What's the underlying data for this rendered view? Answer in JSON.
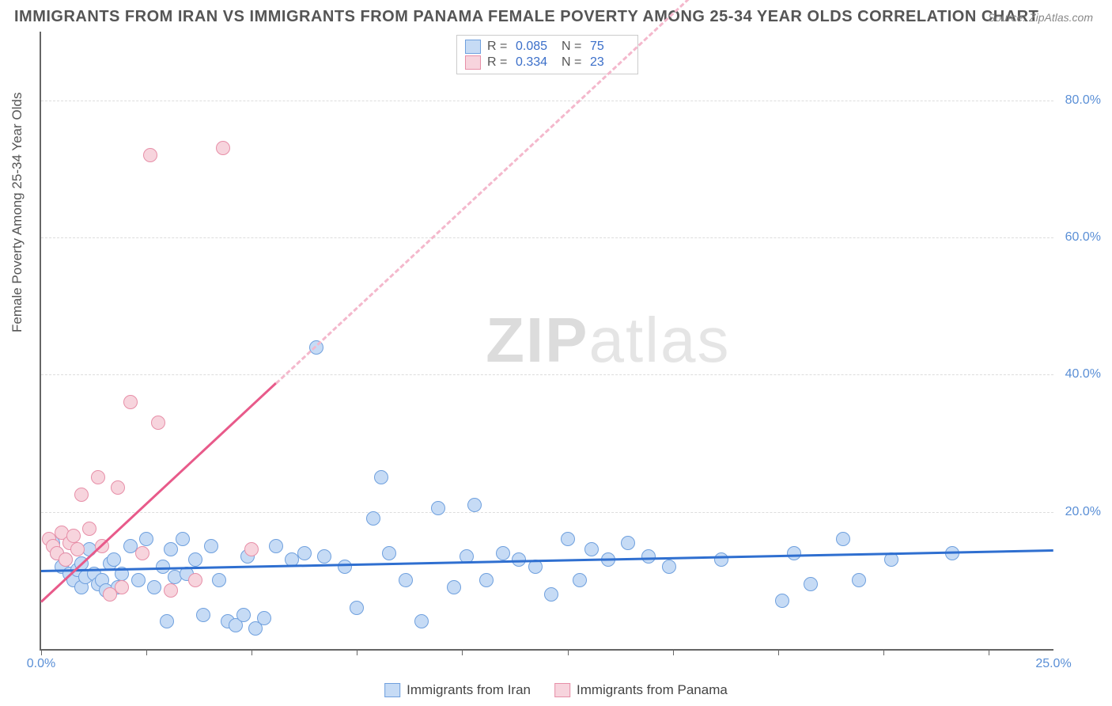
{
  "title": "IMMIGRANTS FROM IRAN VS IMMIGRANTS FROM PANAMA FEMALE POVERTY AMONG 25-34 YEAR OLDS CORRELATION CHART",
  "source_label": "Source:",
  "source_value": "ZipAtlas.com",
  "watermark_bold": "ZIP",
  "watermark_light": "atlas",
  "ylabel": "Female Poverty Among 25-34 Year Olds",
  "chart": {
    "type": "scatter",
    "background_color": "#ffffff",
    "grid_color": "#dddddd",
    "axis_color": "#666666",
    "xlim": [
      0,
      25
    ],
    "ylim": [
      0,
      90
    ],
    "xtick_positions": [
      0,
      2.6,
      5.2,
      7.8,
      10.4,
      13.0,
      15.6,
      18.2,
      20.8,
      23.4
    ],
    "xtick_labels": {
      "0": "0.0%",
      "25": "25.0%"
    },
    "ytick_positions": [
      20,
      40,
      60,
      80
    ],
    "ytick_labels": [
      "20.0%",
      "40.0%",
      "60.0%",
      "80.0%"
    ],
    "series": [
      {
        "id": "iran",
        "label": "Immigrants from Iran",
        "marker_fill": "#c6dbf5",
        "marker_stroke": "#6fa0de",
        "marker_radius": 9,
        "trend_color": "#2f6fd0",
        "trend_width": 3,
        "trend_dash": "none",
        "trend_solid_xrange": [
          0,
          25
        ],
        "trend": {
          "slope": 0.12,
          "intercept": 11.5
        },
        "r_value": "0.085",
        "n_value": "75",
        "points": [
          [
            0.3,
            15.5
          ],
          [
            0.4,
            14.0
          ],
          [
            0.5,
            12.0
          ],
          [
            0.6,
            13.0
          ],
          [
            0.7,
            11.0
          ],
          [
            0.8,
            10.0
          ],
          [
            0.9,
            11.5
          ],
          [
            1.0,
            12.5
          ],
          [
            1.0,
            9.0
          ],
          [
            1.1,
            10.5
          ],
          [
            1.2,
            14.5
          ],
          [
            1.3,
            11.0
          ],
          [
            1.4,
            9.5
          ],
          [
            1.5,
            10.0
          ],
          [
            1.6,
            8.5
          ],
          [
            1.7,
            12.5
          ],
          [
            1.8,
            13.0
          ],
          [
            1.9,
            9.0
          ],
          [
            2.0,
            11.0
          ],
          [
            2.2,
            15.0
          ],
          [
            2.4,
            10.0
          ],
          [
            2.6,
            16.0
          ],
          [
            2.8,
            9.0
          ],
          [
            3.0,
            12.0
          ],
          [
            3.1,
            4.0
          ],
          [
            3.2,
            14.5
          ],
          [
            3.3,
            10.5
          ],
          [
            3.5,
            16.0
          ],
          [
            3.6,
            11.0
          ],
          [
            3.8,
            13.0
          ],
          [
            4.0,
            5.0
          ],
          [
            4.2,
            15.0
          ],
          [
            4.4,
            10.0
          ],
          [
            4.6,
            4.0
          ],
          [
            4.8,
            3.5
          ],
          [
            5.0,
            5.0
          ],
          [
            5.1,
            13.5
          ],
          [
            5.3,
            3.0
          ],
          [
            5.5,
            4.5
          ],
          [
            5.8,
            15.0
          ],
          [
            6.2,
            13.0
          ],
          [
            6.5,
            14.0
          ],
          [
            6.8,
            44.0
          ],
          [
            7.0,
            13.5
          ],
          [
            7.5,
            12.0
          ],
          [
            7.8,
            6.0
          ],
          [
            8.2,
            19.0
          ],
          [
            8.4,
            25.0
          ],
          [
            8.6,
            14.0
          ],
          [
            9.0,
            10.0
          ],
          [
            9.4,
            4.0
          ],
          [
            9.8,
            20.5
          ],
          [
            10.2,
            9.0
          ],
          [
            10.5,
            13.5
          ],
          [
            10.7,
            21.0
          ],
          [
            11.0,
            10.0
          ],
          [
            11.4,
            14.0
          ],
          [
            11.8,
            13.0
          ],
          [
            12.2,
            12.0
          ],
          [
            12.6,
            8.0
          ],
          [
            13.0,
            16.0
          ],
          [
            13.3,
            10.0
          ],
          [
            13.6,
            14.5
          ],
          [
            14.0,
            13.0
          ],
          [
            14.5,
            15.5
          ],
          [
            15.0,
            13.5
          ],
          [
            15.5,
            12.0
          ],
          [
            16.8,
            13.0
          ],
          [
            18.3,
            7.0
          ],
          [
            18.6,
            14.0
          ],
          [
            19.0,
            9.5
          ],
          [
            19.8,
            16.0
          ],
          [
            20.2,
            10.0
          ],
          [
            21.0,
            13.0
          ],
          [
            22.5,
            14.0
          ]
        ]
      },
      {
        "id": "panama",
        "label": "Immigrants from Panama",
        "marker_fill": "#f7d4dd",
        "marker_stroke": "#e78fa8",
        "marker_radius": 9,
        "trend_color": "#e85a8a",
        "trend_dash_color": "#f4b8cc",
        "trend_width": 3,
        "trend_dash": "dashed",
        "trend_solid_xrange": [
          0,
          5.8
        ],
        "trend_dash_xrange": [
          5.8,
          16.5
        ],
        "trend": {
          "slope": 5.5,
          "intercept": 7.0
        },
        "r_value": "0.334",
        "n_value": "23",
        "points": [
          [
            0.2,
            16.0
          ],
          [
            0.3,
            15.0
          ],
          [
            0.4,
            14.0
          ],
          [
            0.5,
            17.0
          ],
          [
            0.6,
            13.0
          ],
          [
            0.7,
            15.5
          ],
          [
            0.8,
            16.5
          ],
          [
            0.9,
            14.5
          ],
          [
            1.0,
            22.5
          ],
          [
            1.2,
            17.5
          ],
          [
            1.4,
            25.0
          ],
          [
            1.5,
            15.0
          ],
          [
            1.7,
            8.0
          ],
          [
            1.9,
            23.5
          ],
          [
            2.0,
            9.0
          ],
          [
            2.2,
            36.0
          ],
          [
            2.5,
            14.0
          ],
          [
            2.7,
            72.0
          ],
          [
            2.9,
            33.0
          ],
          [
            3.2,
            8.5
          ],
          [
            3.8,
            10.0
          ],
          [
            4.5,
            73.0
          ],
          [
            5.2,
            14.5
          ]
        ]
      }
    ],
    "legend_top": {
      "r_label": "R =",
      "n_label": "N ="
    }
  }
}
